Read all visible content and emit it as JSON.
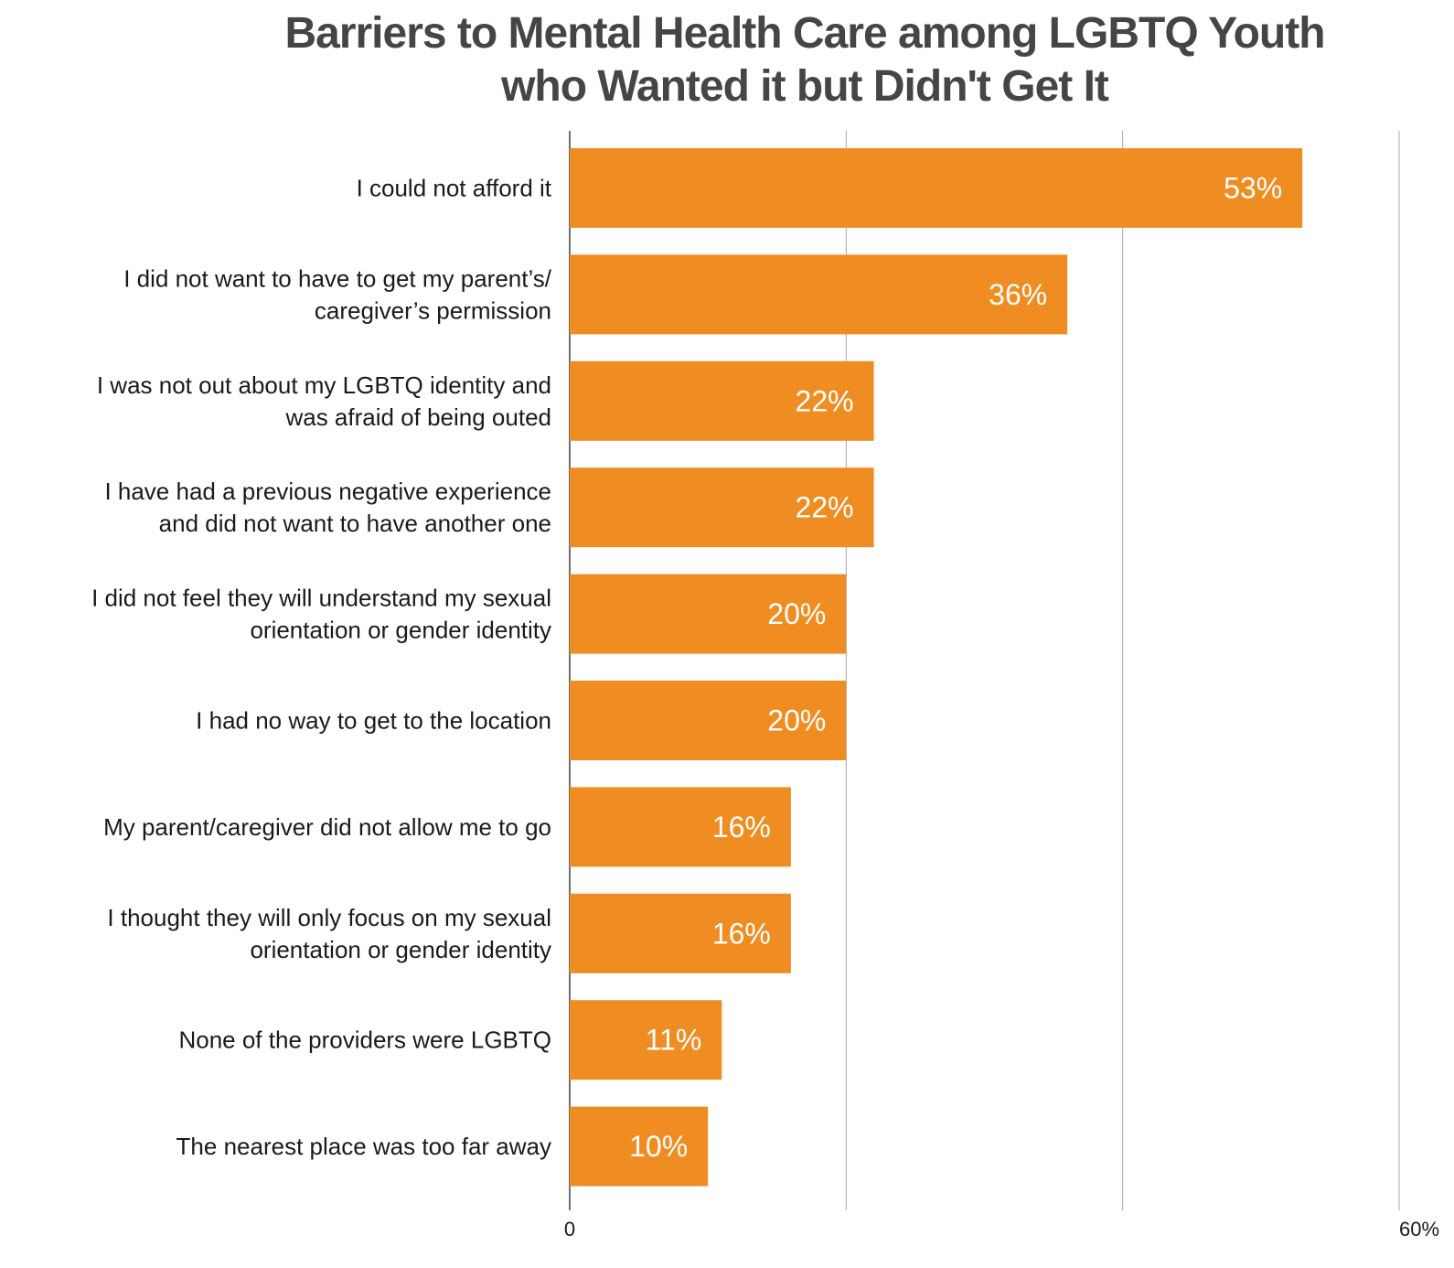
{
  "chart_data": {
    "type": "bar",
    "orientation": "horizontal",
    "title": "Barriers to Mental Health Care among LGBTQ Youth who Wanted it but Didn't Get It",
    "title_lines": [
      "Barriers to Mental Health Care among LGBTQ Youth",
      "who Wanted it but Didn't Get It"
    ],
    "categories": [
      [
        "I could not afford it"
      ],
      [
        "I did not want to have to get my parent’s/",
        "caregiver’s permission"
      ],
      [
        "I was not out about my LGBTQ identity and",
        "was afraid of being outed"
      ],
      [
        "I have had a previous negative experience",
        "and did not want to have another one"
      ],
      [
        "I did not feel they will understand my sexual",
        "orientation or gender identity"
      ],
      [
        "I had no way to get to the location"
      ],
      [
        "My parent/caregiver did not allow me to go"
      ],
      [
        "I thought they will only focus on my sexual",
        "orientation or gender identity"
      ],
      [
        "None of the providers were LGBTQ"
      ],
      [
        "The nearest place was too far away"
      ]
    ],
    "values": [
      53,
      36,
      22,
      22,
      20,
      20,
      16,
      16,
      11,
      10
    ],
    "value_labels": [
      "53%",
      "36%",
      "22%",
      "22%",
      "20%",
      "20%",
      "16%",
      "16%",
      "11%",
      "10%"
    ],
    "xlim": [
      0,
      60
    ],
    "gridlines": [
      20,
      40,
      60
    ],
    "tick_labels": [
      {
        "value": 0,
        "label": "0"
      },
      {
        "value": 60,
        "label": "60%"
      }
    ],
    "xlabel": "",
    "ylabel": "",
    "grid": true,
    "legend": "none",
    "colors": {
      "bar": "#EF8D22",
      "title": "#454545",
      "grid": "#a6a6a6",
      "axis": "#404040"
    }
  }
}
